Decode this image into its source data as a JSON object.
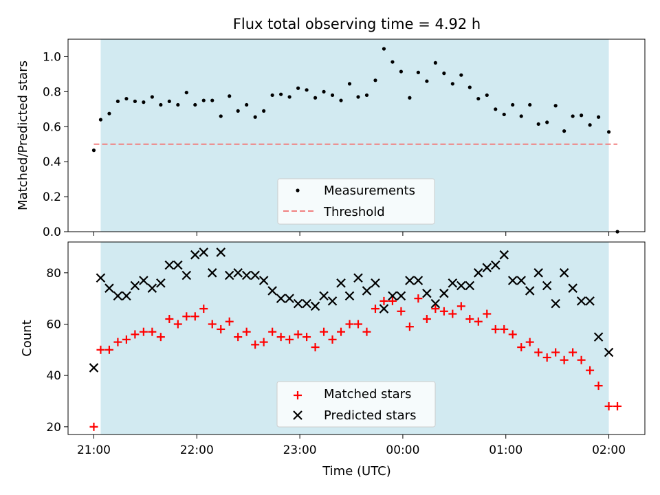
{
  "chart_data": [
    {
      "type": "scatter",
      "title": "Flux total observing time = 4.92 h",
      "xlabel": "",
      "ylabel": "Matched/Predicted stars",
      "ylim": [
        0,
        1.1
      ],
      "xlim_hours_since_21": [
        -0.25,
        5.35
      ],
      "yticks": [
        0.0,
        0.2,
        0.4,
        0.6,
        0.8,
        1.0
      ],
      "ytick_labels": [
        "0.0",
        "0.2",
        "0.4",
        "0.6",
        "0.8",
        "1.0"
      ],
      "shaded_span": {
        "from": "21:04",
        "to": "02:00",
        "color": "#add8e6"
      },
      "threshold": {
        "name": "Threshold",
        "value": 0.5,
        "from": "21:00",
        "to": "02:05",
        "color": "#f08080",
        "style": "dashed"
      },
      "legend": {
        "placement": "lower center",
        "entries": [
          "Measurements",
          "Threshold"
        ]
      },
      "series": [
        {
          "name": "Measurements",
          "marker": "dot",
          "color": "#000000",
          "x": [
            "21:00",
            "21:04",
            "21:09",
            "21:14",
            "21:19",
            "21:24",
            "21:29",
            "21:34",
            "21:39",
            "21:44",
            "21:49",
            "21:54",
            "21:59",
            "22:04",
            "22:09",
            "22:14",
            "22:19",
            "22:24",
            "22:29",
            "22:34",
            "22:39",
            "22:44",
            "22:49",
            "22:54",
            "22:59",
            "23:04",
            "23:09",
            "23:14",
            "23:19",
            "23:24",
            "23:29",
            "23:34",
            "23:39",
            "23:44",
            "23:49",
            "23:54",
            "23:59",
            "00:04",
            "00:09",
            "00:14",
            "00:19",
            "00:24",
            "00:29",
            "00:34",
            "00:39",
            "00:44",
            "00:49",
            "00:54",
            "00:59",
            "01:04",
            "01:09",
            "01:14",
            "01:19",
            "01:24",
            "01:29",
            "01:34",
            "01:39",
            "01:44",
            "01:49",
            "01:54",
            "02:00",
            "02:05"
          ],
          "values": [
            0.465,
            0.64,
            0.675,
            0.745,
            0.76,
            0.745,
            0.74,
            0.77,
            0.725,
            0.745,
            0.725,
            0.795,
            0.725,
            0.75,
            0.75,
            0.66,
            0.775,
            0.69,
            0.725,
            0.655,
            0.69,
            0.78,
            0.785,
            0.77,
            0.82,
            0.81,
            0.765,
            0.8,
            0.78,
            0.75,
            0.845,
            0.77,
            0.78,
            0.865,
            1.045,
            0.97,
            0.915,
            0.765,
            0.91,
            0.86,
            0.965,
            0.905,
            0.845,
            0.895,
            0.825,
            0.76,
            0.78,
            0.7,
            0.67,
            0.725,
            0.66,
            0.725,
            0.615,
            0.625,
            0.72,
            0.575,
            0.66,
            0.665,
            0.61,
            0.655,
            0.57,
            0.0
          ]
        }
      ]
    },
    {
      "type": "scatter",
      "title": "",
      "xlabel": "Time (UTC)",
      "ylabel": "Count",
      "ylim": [
        17,
        92
      ],
      "xlim_hours_since_21": [
        -0.25,
        5.35
      ],
      "yticks": [
        20,
        40,
        60,
        80
      ],
      "ytick_labels": [
        "20",
        "40",
        "60",
        "80"
      ],
      "xticks": [
        "21:00",
        "22:00",
        "23:00",
        "00:00",
        "01:00",
        "02:00"
      ],
      "shaded_span": {
        "from": "21:04",
        "to": "02:00",
        "color": "#add8e6"
      },
      "legend": {
        "placement": "lower center",
        "entries": [
          "Matched stars",
          "Predicted stars"
        ]
      },
      "series": [
        {
          "name": "Matched stars",
          "marker": "plus",
          "color": "#ff0000",
          "x": [
            "21:00",
            "21:04",
            "21:09",
            "21:14",
            "21:19",
            "21:24",
            "21:29",
            "21:34",
            "21:39",
            "21:44",
            "21:49",
            "21:54",
            "21:59",
            "22:04",
            "22:09",
            "22:14",
            "22:19",
            "22:24",
            "22:29",
            "22:34",
            "22:39",
            "22:44",
            "22:49",
            "22:54",
            "22:59",
            "23:04",
            "23:09",
            "23:14",
            "23:19",
            "23:24",
            "23:29",
            "23:34",
            "23:39",
            "23:44",
            "23:49",
            "23:54",
            "23:59",
            "00:04",
            "00:09",
            "00:14",
            "00:19",
            "00:24",
            "00:29",
            "00:34",
            "00:39",
            "00:44",
            "00:49",
            "00:54",
            "00:59",
            "01:04",
            "01:09",
            "01:14",
            "01:19",
            "01:24",
            "01:29",
            "01:34",
            "01:39",
            "01:44",
            "01:49",
            "01:54",
            "02:00",
            "02:05"
          ],
          "values": [
            20,
            50,
            50,
            53,
            54,
            56,
            57,
            57,
            55,
            62,
            60,
            63,
            63,
            66,
            60,
            58,
            61,
            55,
            57,
            52,
            53,
            57,
            55,
            54,
            56,
            55,
            51,
            57,
            54,
            57,
            60,
            60,
            57,
            66,
            69,
            69,
            65,
            59,
            70,
            62,
            66,
            65,
            64,
            67,
            62,
            61,
            64,
            58,
            58,
            56,
            51,
            53,
            49,
            47,
            49,
            46,
            49,
            46,
            42,
            36,
            28,
            28
          ]
        },
        {
          "name": "Predicted stars",
          "marker": "x",
          "color": "#000000",
          "x": [
            "21:00",
            "21:04",
            "21:09",
            "21:14",
            "21:19",
            "21:24",
            "21:29",
            "21:34",
            "21:39",
            "21:44",
            "21:49",
            "21:54",
            "21:59",
            "22:04",
            "22:09",
            "22:14",
            "22:19",
            "22:24",
            "22:29",
            "22:34",
            "22:39",
            "22:44",
            "22:49",
            "22:54",
            "22:59",
            "23:04",
            "23:09",
            "23:14",
            "23:19",
            "23:24",
            "23:29",
            "23:34",
            "23:39",
            "23:44",
            "23:49",
            "23:54",
            "23:59",
            "00:04",
            "00:09",
            "00:14",
            "00:19",
            "00:24",
            "00:29",
            "00:34",
            "00:39",
            "00:44",
            "00:49",
            "00:54",
            "00:59",
            "01:04",
            "01:09",
            "01:14",
            "01:19",
            "01:24",
            "01:29",
            "01:34",
            "01:39",
            "01:44",
            "01:49",
            "01:54",
            "02:00"
          ],
          "values": [
            43,
            78,
            74,
            71,
            71,
            75,
            77,
            74,
            76,
            83,
            83,
            79,
            87,
            88,
            80,
            88,
            79,
            80,
            79,
            79,
            77,
            73,
            70,
            70,
            68,
            68,
            67,
            71,
            69,
            76,
            71,
            78,
            73,
            76,
            66,
            71,
            71,
            77,
            77,
            72,
            68,
            72,
            76,
            75,
            75,
            80,
            82,
            83,
            87,
            77,
            77,
            73,
            80,
            75,
            68,
            80,
            74,
            69,
            69,
            55,
            49
          ]
        }
      ]
    }
  ]
}
